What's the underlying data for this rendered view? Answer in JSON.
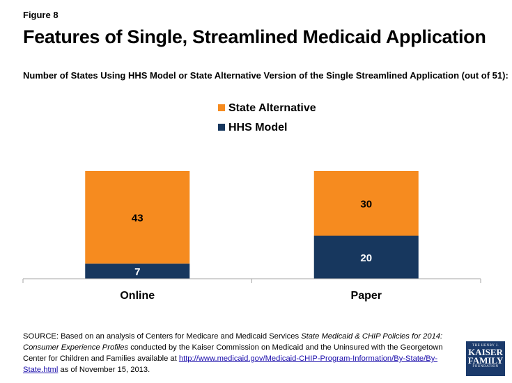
{
  "figure_label": "Figure 8",
  "title": "Features of Single, Streamlined Medicaid Application",
  "subtitle": "Number of States Using HHS Model or State Alternative Version of the Single Streamlined Application (out of 51):",
  "colors": {
    "state_alternative": "#f68b1f",
    "hhs_model": "#17375e",
    "axis": "#a6a6a6"
  },
  "chart_data": {
    "type": "bar",
    "stacked": true,
    "categories": [
      "Online",
      "Paper"
    ],
    "series": [
      {
        "name": "HHS Model",
        "values": [
          7,
          20
        ],
        "color": "#17375e"
      },
      {
        "name": "State Alternative",
        "values": [
          43,
          30
        ],
        "color": "#f68b1f"
      }
    ],
    "legend": [
      "State Alternative",
      "HHS Model"
    ],
    "ylim": [
      0,
      50
    ],
    "xlabel": "",
    "ylabel": ""
  },
  "source": {
    "prefix": "SOURCE: Based on an analysis of Centers for Medicare and Medicaid Services ",
    "italic": "State Medicaid & CHIP Policies for 2014: Consumer Experience Profiles",
    "middle": " conducted by the Kaiser Commission on Medicaid and the Uninsured with the Georgetown Center for Children and Families available at ",
    "link": "http://www.medicaid.gov/Medicaid-CHIP-Program-Information/By-State/By-State.html",
    "suffix": " as of November 15, 2013."
  },
  "logo": {
    "line1": "THE HENRY J.",
    "line2": "KAISER",
    "line3": "FAMILY",
    "line4": "FOUNDATION"
  }
}
